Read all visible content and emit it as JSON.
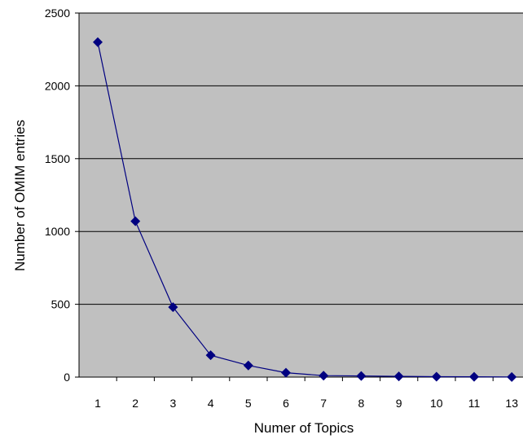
{
  "chart_data": {
    "type": "line",
    "title": "",
    "xlabel": "Numer of Topics",
    "ylabel": "Number of OMIM entries",
    "categories": [
      "1",
      "2",
      "3",
      "4",
      "5",
      "6",
      "7",
      "8",
      "9",
      "10",
      "11",
      "13"
    ],
    "series": [
      {
        "values": [
          2300,
          1070,
          480,
          150,
          80,
          30,
          10,
          8,
          5,
          3,
          2,
          1
        ]
      }
    ],
    "ylim": [
      0,
      2500
    ],
    "yticks": [
      0,
      500,
      1000,
      1500,
      2000,
      2500
    ],
    "grid": "horizontal",
    "legend": "none",
    "colors": {
      "plot_background": "#c0c0c0",
      "series": "#000080",
      "gridline": "#000000"
    }
  }
}
